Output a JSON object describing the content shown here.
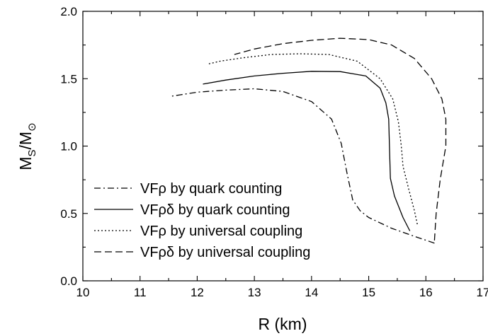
{
  "chart_data": {
    "type": "line",
    "xlabel": "R (km)",
    "ylabel": "M",
    "ylabel_sub1": "S",
    "ylabel_mid": "/M",
    "ylabel_sub2": "⊙",
    "xlim": [
      10,
      17
    ],
    "ylim": [
      0.0,
      2.0
    ],
    "xticks": [
      "10",
      "11",
      "12",
      "13",
      "14",
      "15",
      "16",
      "17"
    ],
    "yticks": [
      "0.0",
      "0.5",
      "1.0",
      "1.5",
      "2.0"
    ],
    "legend_position": "bottom-left",
    "series": [
      {
        "name": "VFρ  by quark counting",
        "dash": "dashdot",
        "x": [
          16.15,
          15.8,
          15.4,
          15.0,
          14.85,
          14.72,
          14.62,
          14.52,
          14.35,
          14.0,
          13.5,
          13.0,
          12.5,
          12.0,
          11.55
        ],
        "y": [
          0.28,
          0.33,
          0.39,
          0.47,
          0.52,
          0.6,
          0.8,
          1.02,
          1.2,
          1.33,
          1.405,
          1.425,
          1.415,
          1.4,
          1.37
        ]
      },
      {
        "name": "VFρδ by quark counting",
        "dash": "solid",
        "x": [
          15.72,
          15.6,
          15.45,
          15.38,
          15.37,
          15.36,
          15.35,
          15.3,
          15.2,
          14.95,
          14.5,
          14.0,
          13.5,
          13.0,
          12.5,
          12.1
        ],
        "y": [
          0.37,
          0.47,
          0.63,
          0.76,
          0.9,
          1.05,
          1.2,
          1.32,
          1.43,
          1.52,
          1.553,
          1.555,
          1.54,
          1.52,
          1.49,
          1.46
        ]
      },
      {
        "name": "VFρ  by universal coupling",
        "dash": "dotted",
        "x": [
          15.85,
          15.8,
          15.7,
          15.6,
          15.57,
          15.52,
          15.42,
          15.2,
          14.8,
          14.3,
          13.8,
          13.3,
          12.8,
          12.4,
          12.2
        ],
        "y": [
          0.42,
          0.52,
          0.68,
          0.85,
          1.0,
          1.18,
          1.35,
          1.5,
          1.63,
          1.68,
          1.685,
          1.68,
          1.655,
          1.63,
          1.61
        ]
      },
      {
        "name": "VFρδ by universal coupling",
        "dash": "dashed",
        "x": [
          16.15,
          16.18,
          16.25,
          16.35,
          16.35,
          16.28,
          16.1,
          15.8,
          15.4,
          15.0,
          14.5,
          14.0,
          13.5,
          13.0,
          12.65
        ],
        "y": [
          0.3,
          0.5,
          0.75,
          1.0,
          1.2,
          1.35,
          1.5,
          1.65,
          1.75,
          1.79,
          1.8,
          1.785,
          1.76,
          1.72,
          1.68
        ]
      }
    ]
  }
}
